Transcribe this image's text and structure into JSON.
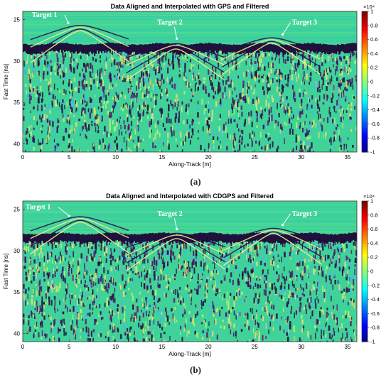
{
  "chart_data": [
    {
      "type": "heatmap",
      "title": "Data Aligned and Interpolated with GPS and Filtered",
      "xlabel": "Along-Track [m]",
      "ylabel": "Fast Time [ns]",
      "xlim": [
        0,
        36
      ],
      "ylim": [
        41,
        24
      ],
      "x_ticks": [
        0,
        5,
        10,
        15,
        20,
        25,
        30,
        35
      ],
      "y_ticks": [
        25,
        30,
        35,
        40
      ],
      "colorbar": {
        "colormap": "jet",
        "range": [
          -1,
          1
        ],
        "multiplier_label": "×10⁴",
        "ticks": [
          1,
          0.8,
          0.6,
          0.4,
          0.2,
          0,
          -0.2,
          -0.4,
          -0.6,
          -0.8,
          -1
        ],
        "tick_labels": [
          "1",
          "0.8",
          "0.6",
          "0.4",
          "0.2",
          "0",
          "-0.2",
          "-0.4",
          "-0.6",
          "-0.8",
          "-1"
        ]
      },
      "surface_time_ns": 28.3,
      "targets": [
        {
          "label": "Target 1",
          "along_track_m": 6.2,
          "apex_time_ns": 25.7,
          "label_x_m": 1,
          "label_y_ns": 24.7,
          "arrow_to": [
            4.9,
            25.4
          ]
        },
        {
          "label": "Target 2",
          "along_track_m": 16.5,
          "apex_time_ns": 27.9,
          "label_x_m": 14.5,
          "label_y_ns": 25.6,
          "arrow_to": [
            16.6,
            27.3
          ]
        },
        {
          "label": "Target 3",
          "along_track_m": 26.8,
          "apex_time_ns": 27.2,
          "label_x_m": 29,
          "label_y_ns": 25.6,
          "arrow_to": [
            28,
            26.8
          ]
        }
      ],
      "caption": "(a)"
    },
    {
      "type": "heatmap",
      "title": "Data Aligned and Interpolated with CDGPS and Filtered",
      "xlabel": "Along-Track [m]",
      "ylabel": "Fast Time [ns]",
      "xlim": [
        0,
        36
      ],
      "ylim": [
        41,
        24
      ],
      "x_ticks": [
        0,
        5,
        10,
        15,
        20,
        25,
        30,
        35
      ],
      "y_ticks": [
        25,
        30,
        35,
        40
      ],
      "colorbar": {
        "colormap": "jet",
        "range": [
          -1,
          1
        ],
        "multiplier_label": "×10⁴",
        "ticks": [
          1,
          0.8,
          0.6,
          0.4,
          0.2,
          0,
          -0.2,
          -0.4,
          -0.6,
          -0.8,
          -1
        ],
        "tick_labels": [
          "1",
          "0.8",
          "0.6",
          "0.4",
          "0.2",
          "0",
          "-0.2",
          "-0.4",
          "-0.6",
          "-0.8",
          "-1"
        ]
      },
      "surface_time_ns": 28.3,
      "targets": [
        {
          "label": "Target 1",
          "along_track_m": 6.2,
          "apex_time_ns": 25.9,
          "label_x_m": 0.3,
          "label_y_ns": 25.0,
          "arrow_to": [
            5.0,
            25.8
          ]
        },
        {
          "label": "Target 2",
          "along_track_m": 16.6,
          "apex_time_ns": 27.9,
          "label_x_m": 14.5,
          "label_y_ns": 25.8,
          "arrow_to": [
            16.6,
            27.4
          ]
        },
        {
          "label": "Target 3",
          "along_track_m": 27.0,
          "apex_time_ns": 27.3,
          "label_x_m": 29,
          "label_y_ns": 25.8,
          "arrow_to": [
            28,
            26.9
          ]
        }
      ],
      "caption": "(b)"
    }
  ]
}
